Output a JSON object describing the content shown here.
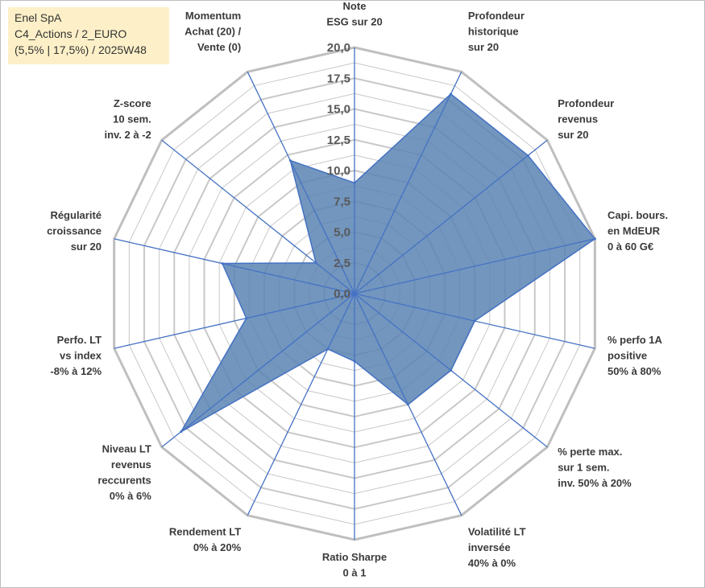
{
  "info": {
    "line1": "Enel SpA",
    "line2": "C4_Actions / 2_EURO",
    "line3": "(5,5% | 17,5%) / 2025W48"
  },
  "chart_data": {
    "type": "radar",
    "title": "",
    "rmax": 20,
    "ticks": [
      "0,0",
      "2,5",
      "5,0",
      "7,5",
      "10,0",
      "12,5",
      "15,0",
      "17,5",
      "20,0"
    ],
    "tick_values": [
      0,
      2.5,
      5,
      7.5,
      10,
      12.5,
      15,
      17.5,
      20
    ],
    "axes": [
      {
        "lines": [
          "Note",
          "ESG sur 20"
        ],
        "value": 9
      },
      {
        "lines": [
          "Profondeur",
          "historique",
          "sur 20"
        ],
        "value": 18
      },
      {
        "lines": [
          "Profondeur",
          "revenus",
          "sur 20"
        ],
        "value": 18
      },
      {
        "lines": [
          "Capi. bours.",
          "en MdEUR",
          "0 à 60 G€"
        ],
        "value": 20
      },
      {
        "lines": [
          "% perfo 1A",
          "positive",
          "50% à 80%"
        ],
        "value": 10
      },
      {
        "lines": [
          "% perte max.",
          "sur 1 sem.",
          "inv. 50% à 20%"
        ],
        "value": 10
      },
      {
        "lines": [
          "Volatilité LT",
          "inversée",
          "40% à 0%"
        ],
        "value": 10
      },
      {
        "lines": [
          "Ratio Sharpe",
          "0 à 1"
        ],
        "value": 5.5
      },
      {
        "lines": [
          "Rendement LT",
          "0% à 20%"
        ],
        "value": 5
      },
      {
        "lines": [
          "Niveau LT",
          "revenus",
          "reccurents",
          "0% à 6%"
        ],
        "value": 18
      },
      {
        "lines": [
          "Perfo. LT",
          "vs index",
          "-8% à 12%"
        ],
        "value": 9
      },
      {
        "lines": [
          "Régularité",
          "croissance",
          "sur 20"
        ],
        "value": 11
      },
      {
        "lines": [
          "Z-score",
          "10 sem.",
          "inv. 2 à -2"
        ],
        "value": 4
      },
      {
        "lines": [
          "Momentum",
          "Achat (20) /",
          "Vente (0)"
        ],
        "value": 12
      }
    ],
    "colors": {
      "fill": "#5b84b3",
      "line": "#4472c4",
      "spoke": "#4472c4",
      "grid": "#c8c8c8",
      "outer": "#bfbfbf"
    }
  }
}
